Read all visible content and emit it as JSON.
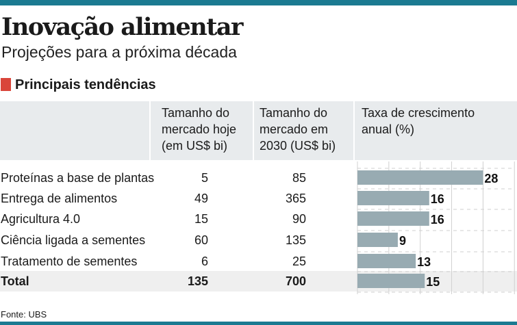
{
  "title": "Inovação alimentar",
  "subtitle": "Projeções para a próxima década",
  "section": "Principais tendências",
  "source": "Fonte: UBS",
  "colors": {
    "accent_bar": "#1b7a91",
    "section_marker": "#d9453a",
    "bar": "#98abb2"
  },
  "chart_data": {
    "type": "table",
    "columns": [
      "",
      "Tamanho do mercado hoje (em US$ bi)",
      "Tamanho do mercado em 2030 (US$ bi)",
      "Taxa de crescimento anual (%)"
    ],
    "header_lines": [
      [
        "Tamanho do",
        "mercado hoje",
        "(em US$ bi)"
      ],
      [
        "Tamanho do",
        "mercado em",
        "2030 (US$ bi)"
      ],
      [
        "Taxa de crescimento",
        "anual (%)"
      ]
    ],
    "rows": [
      {
        "label": "Proteínas a base de plantas",
        "today": "5",
        "y2030": "85",
        "growth": 28
      },
      {
        "label": "Entrega de alimentos",
        "today": "49",
        "y2030": "365",
        "growth": 16
      },
      {
        "label": "Agricultura 4.0",
        "today": "15",
        "y2030": "90",
        "growth": 16
      },
      {
        "label": "Ciência ligada a sementes",
        "today": "60",
        "y2030": "135",
        "growth": 9
      },
      {
        "label": "Tratamento de sementes",
        "today": "6",
        "y2030": "25",
        "growth": 13
      },
      {
        "label": "Total",
        "today": "135",
        "y2030": "700",
        "growth": 15
      }
    ],
    "bar_axis_range": [
      0,
      35
    ],
    "grid": true
  }
}
